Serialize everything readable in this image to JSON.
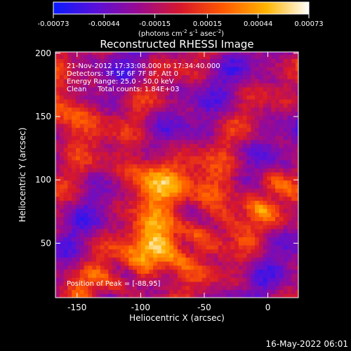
{
  "chart_data": {
    "type": "heatmap",
    "title": "Reconstructed RHESSI Image",
    "xlabel": "Heliocentric X (arcsec)",
    "ylabel": "Heliocentric Y (arcsec)",
    "xlim": [
      -167,
      24
    ],
    "ylim": [
      7,
      201
    ],
    "x_ticks": [
      -150,
      -100,
      -50,
      0
    ],
    "y_ticks": [
      50,
      100,
      150,
      200
    ],
    "colorbar": {
      "range": [
        -0.00073,
        0.00073
      ],
      "tick_values": [
        -0.00073,
        -0.00044,
        -0.00015,
        0.00015,
        0.00044,
        0.00073
      ],
      "tick_labels": [
        "-0.00073",
        "-0.00044",
        "-0.00015",
        "0.00015",
        "0.00044",
        "0.00073"
      ],
      "unit_text": "(photons cm",
      "unit_sup1": "-2",
      "unit_mid": " s",
      "unit_sup2": "-1",
      "unit_end": " asec",
      "unit_sup3": "-2",
      "unit_close": ")",
      "colors": [
        "#0a1aff",
        "#5a10d8",
        "#9a0a90",
        "#d8182a",
        "#ff5a00",
        "#ffb400",
        "#ffffff"
      ]
    },
    "annotations": [
      "21-Nov-2012 17:33:08.000 to 17:34:40.000",
      "Detectors: 3F 5F 6F 7F 8F, Att 0",
      "Energy Range: 25.0 - 50.0 keV",
      "Clean     Total counts: 1.84E+03"
    ],
    "peak_label": "Position of Peak = [-88,95]",
    "bright_sources": [
      {
        "x": -95,
        "y": 100,
        "value": 0.0007
      },
      {
        "x": -160,
        "y": 150,
        "value": 0.0006
      },
      {
        "x": -85,
        "y": 45,
        "value": 0.00068
      },
      {
        "x": -40,
        "y": 90,
        "value": 0.0004
      }
    ]
  },
  "footer_timestamp": "16-May-2022 06:01"
}
